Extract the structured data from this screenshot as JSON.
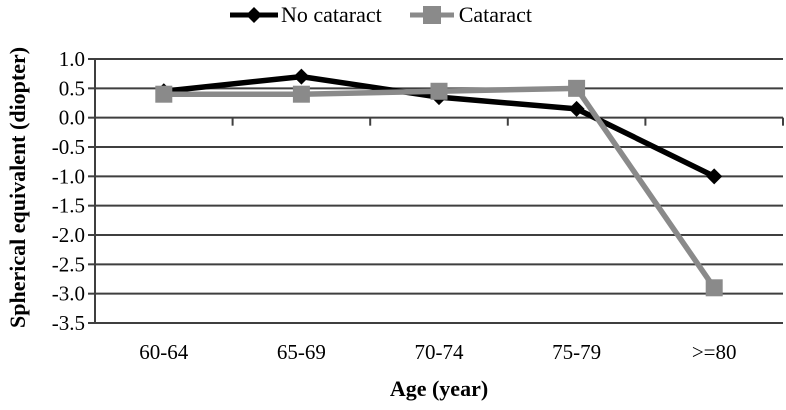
{
  "chart_data": {
    "type": "line",
    "title": "",
    "xlabel": "Age (year)",
    "ylabel": "Spherical equivalent (diopter)",
    "categories": [
      "60-64",
      "65-69",
      "70-74",
      "75-79",
      ">=80"
    ],
    "series": [
      {
        "name": "No cataract",
        "marker": "diamond",
        "color": "#000000",
        "values": [
          0.45,
          0.7,
          0.35,
          0.15,
          -1.0
        ]
      },
      {
        "name": "Cataract",
        "marker": "square",
        "color": "#8a8a8a",
        "values": [
          0.4,
          0.4,
          0.45,
          0.5,
          -2.9
        ]
      }
    ],
    "ylim": [
      -3.5,
      1.0
    ],
    "ytick_step": 0.5,
    "ytick_labels": [
      "1.0",
      "0.5",
      "0.0",
      "-0.5",
      "-1.0",
      "-1.5",
      "-2.0",
      "-2.5",
      "-3.0",
      "-3.5"
    ],
    "grid": true,
    "legend_position": "top",
    "axis_crosses_at": 0.0,
    "axis_color": "#3f3f3f",
    "text_color": "#000000",
    "background": "#ffffff"
  }
}
